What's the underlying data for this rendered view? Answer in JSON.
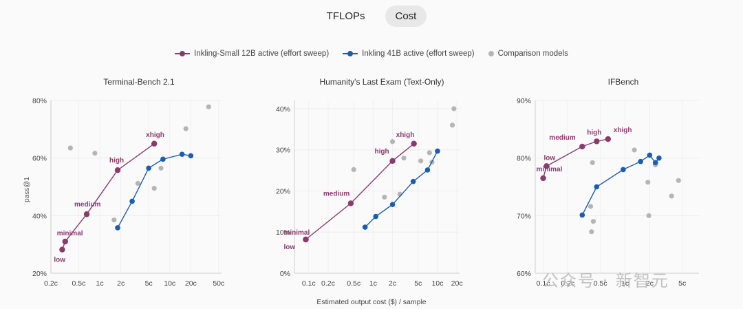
{
  "tabs": [
    {
      "label": "TFLOPs"
    },
    {
      "label": "Cost"
    }
  ],
  "legend": {
    "small": "Inkling-Small  12B active  (effort sweep)",
    "big": "Inkling  41B active  (effort sweep)",
    "comp": "Comparison models"
  },
  "axis": {
    "ylabel": "pass@1",
    "xlabel": "Estimated output cost ($) / sample"
  },
  "watermark": "公众号 · 新智元",
  "colors": {
    "small": "#8b3a6e",
    "big": "#1a5eb0",
    "comp": "#b5b5b5"
  },
  "chart_data": [
    {
      "type": "scatter",
      "title": "Terminal-Bench 2.1",
      "xscale": "log",
      "xlim": [
        0.2,
        55
      ],
      "ylim": [
        20,
        80
      ],
      "xticks": [
        {
          "v": 0.2,
          "label": "0.2c"
        },
        {
          "v": 0.5,
          "label": "0.5c"
        },
        {
          "v": 1,
          "label": "1c"
        },
        {
          "v": 2,
          "label": "2c"
        },
        {
          "v": 5,
          "label": "5c"
        },
        {
          "v": 10,
          "label": "10c"
        },
        {
          "v": 20,
          "label": "20c"
        },
        {
          "v": 50,
          "label": "50c"
        }
      ],
      "yticks": [
        {
          "v": 20,
          "label": "20%"
        },
        {
          "v": 40,
          "label": "40%"
        },
        {
          "v": 60,
          "label": "60%"
        },
        {
          "v": 80,
          "label": "80%"
        }
      ],
      "series": [
        {
          "name": "Inkling-Small  12B active  (effort sweep)",
          "points": [
            {
              "x": 0.29,
              "y": 28.2,
              "label": "low"
            },
            {
              "x": 0.32,
              "y": 31.0,
              "label": "minimal"
            },
            {
              "x": 0.65,
              "y": 40.5,
              "label": "medium"
            },
            {
              "x": 1.8,
              "y": 55.8,
              "label": "high"
            },
            {
              "x": 6.0,
              "y": 65.0,
              "label": "xhigh"
            }
          ]
        },
        {
          "name": "Inkling  41B active  (effort sweep)",
          "points": [
            {
              "x": 1.8,
              "y": 35.8
            },
            {
              "x": 2.9,
              "y": 45.0
            },
            {
              "x": 5.0,
              "y": 56.5
            },
            {
              "x": 8.0,
              "y": 59.6
            },
            {
              "x": 15.0,
              "y": 61.3
            },
            {
              "x": 20.0,
              "y": 60.8
            }
          ]
        }
      ],
      "comparison": [
        {
          "x": 0.38,
          "y": 63.5
        },
        {
          "x": 0.85,
          "y": 61.7
        },
        {
          "x": 1.6,
          "y": 38.5
        },
        {
          "x": 3.5,
          "y": 51.2
        },
        {
          "x": 6.0,
          "y": 49.5
        },
        {
          "x": 7.5,
          "y": 56.5
        },
        {
          "x": 17.0,
          "y": 70.2
        },
        {
          "x": 36.0,
          "y": 77.8
        }
      ]
    },
    {
      "type": "scatter",
      "title": "Humanity's Last Exam (Text-Only)",
      "xscale": "log",
      "xlim": [
        0.06,
        22
      ],
      "ylim": [
        0,
        42
      ],
      "xticks": [
        {
          "v": 0.1,
          "label": "0.1c"
        },
        {
          "v": 0.2,
          "label": "0.2c"
        },
        {
          "v": 0.5,
          "label": "0.5c"
        },
        {
          "v": 1,
          "label": "1c"
        },
        {
          "v": 2,
          "label": "2c"
        },
        {
          "v": 5,
          "label": "5c"
        },
        {
          "v": 10,
          "label": "10c"
        },
        {
          "v": 20,
          "label": "20c"
        }
      ],
      "yticks": [
        {
          "v": 0,
          "label": "0%"
        },
        {
          "v": 10,
          "label": "10%"
        },
        {
          "v": 20,
          "label": "20%"
        },
        {
          "v": 30,
          "label": "30%"
        },
        {
          "v": 40,
          "label": "40%"
        }
      ],
      "series": [
        {
          "name": "Inkling-Small  12B active  (effort sweep)",
          "points": [
            {
              "x": 0.09,
              "y": 8.2,
              "label": "minimal"
            },
            {
              "x": 0.09,
              "y": 8.2,
              "label": "low"
            },
            {
              "x": 0.45,
              "y": 17.0,
              "label": "medium"
            },
            {
              "x": 2.0,
              "y": 27.3,
              "label": "high"
            },
            {
              "x": 4.3,
              "y": 31.5,
              "label": "xhigh"
            }
          ]
        },
        {
          "name": "Inkling  41B active  (effort sweep)",
          "points": [
            {
              "x": 0.75,
              "y": 11.2
            },
            {
              "x": 1.1,
              "y": 13.8
            },
            {
              "x": 2.0,
              "y": 16.7
            },
            {
              "x": 4.2,
              "y": 22.3
            },
            {
              "x": 7.0,
              "y": 25.1
            },
            {
              "x": 10.0,
              "y": 29.7
            }
          ]
        }
      ],
      "comparison": [
        {
          "x": 0.5,
          "y": 25.2
        },
        {
          "x": 1.5,
          "y": 18.5
        },
        {
          "x": 2.0,
          "y": 32.0
        },
        {
          "x": 2.6,
          "y": 19.2
        },
        {
          "x": 3.0,
          "y": 28.0
        },
        {
          "x": 5.5,
          "y": 27.3
        },
        {
          "x": 7.5,
          "y": 29.3
        },
        {
          "x": 8.2,
          "y": 27.0
        },
        {
          "x": 17.0,
          "y": 36.0
        },
        {
          "x": 18.0,
          "y": 40.0
        }
      ]
    },
    {
      "type": "scatter",
      "title": "IFBench",
      "xscale": "log",
      "xlim": [
        0.08,
        8
      ],
      "ylim": [
        60,
        90
      ],
      "xticks": [
        {
          "v": 0.1,
          "label": "0.1c"
        },
        {
          "v": 0.2,
          "label": "0.2c"
        },
        {
          "v": 0.5,
          "label": "0.5c"
        },
        {
          "v": 1,
          "label": "1c"
        },
        {
          "v": 2,
          "label": "2c"
        },
        {
          "v": 5,
          "label": "5c"
        }
      ],
      "yticks": [
        {
          "v": 60,
          "label": "60%"
        },
        {
          "v": 70,
          "label": "70%"
        },
        {
          "v": 80,
          "label": "80%"
        },
        {
          "v": 90,
          "label": "90%"
        }
      ],
      "series": [
        {
          "name": "Inkling-Small  12B active  (effort sweep)",
          "points": [
            {
              "x": 0.1,
              "y": 76.5,
              "label": "minimal"
            },
            {
              "x": 0.11,
              "y": 78.6,
              "label": "low"
            },
            {
              "x": 0.3,
              "y": 82.0,
              "label": "medium"
            },
            {
              "x": 0.45,
              "y": 82.9,
              "label": "high"
            },
            {
              "x": 0.62,
              "y": 83.3,
              "label": "xhigh"
            }
          ]
        },
        {
          "name": "Inkling  41B active  (effort sweep)",
          "points": [
            {
              "x": 0.3,
              "y": 70.1
            },
            {
              "x": 0.45,
              "y": 75.0
            },
            {
              "x": 0.95,
              "y": 78.0
            },
            {
              "x": 1.55,
              "y": 79.4
            },
            {
              "x": 2.0,
              "y": 80.5
            },
            {
              "x": 2.35,
              "y": 79.2
            },
            {
              "x": 2.6,
              "y": 80.0
            }
          ]
        }
      ],
      "comparison": [
        {
          "x": 0.38,
          "y": 71.6
        },
        {
          "x": 0.39,
          "y": 67.2
        },
        {
          "x": 0.4,
          "y": 79.2
        },
        {
          "x": 0.41,
          "y": 69.0
        },
        {
          "x": 1.3,
          "y": 81.4
        },
        {
          "x": 1.9,
          "y": 75.8
        },
        {
          "x": 1.95,
          "y": 70.0
        },
        {
          "x": 2.35,
          "y": 78.8
        },
        {
          "x": 3.7,
          "y": 73.4
        },
        {
          "x": 4.5,
          "y": 76.1
        }
      ]
    }
  ]
}
